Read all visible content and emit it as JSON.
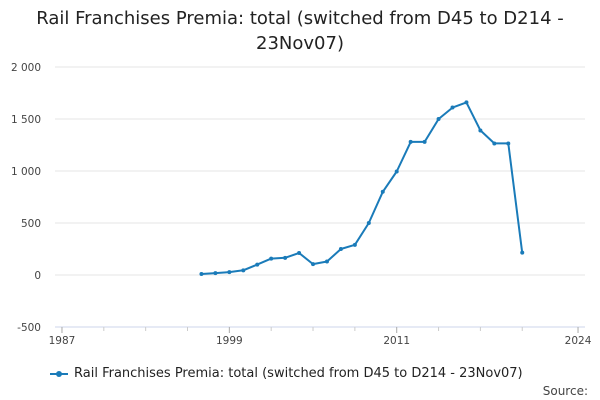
{
  "chart_data": {
    "type": "line",
    "title_lines": [
      "Rail Franchises Premia: total (switched from D45 to D214 -",
      "23Nov07)"
    ],
    "x": [
      1997,
      1998,
      1999,
      2000,
      2001,
      2002,
      2003,
      2004,
      2005,
      2006,
      2007,
      2008,
      2009,
      2010,
      2011,
      2012,
      2013,
      2014,
      2015,
      2016,
      2017,
      2018,
      2019,
      2020
    ],
    "series": [
      {
        "name": "Rail Franchises Premia: total (switched from D45 to D214 - 23Nov07)",
        "color": "#1a7bb9",
        "values": [
          10,
          18,
          28,
          45,
          100,
          158,
          165,
          212,
          105,
          130,
          250,
          290,
          500,
          800,
          995,
          1280,
          1280,
          1500,
          1610,
          1660,
          1390,
          1265,
          1265,
          215
        ]
      }
    ],
    "xlim": [
      1986.5,
      2024.5
    ],
    "ylim": [
      -500,
      2000
    ],
    "y_ticks": [
      -500,
      0,
      500,
      1000,
      1500,
      2000
    ],
    "y_tick_labels": [
      "-500",
      "0",
      "500",
      "1 000",
      "1 500",
      "2 000"
    ],
    "x_ticks": [
      1987,
      1999,
      2011,
      2024
    ],
    "x_tick_labels": [
      "1987",
      "1999",
      "2011",
      "2024"
    ],
    "x_minor_ticks": [
      1990,
      1993,
      1996,
      2002,
      2005,
      2008,
      2014,
      2017,
      2020
    ],
    "grid": true,
    "legend_position": "bottom-left",
    "source_label": "Source:"
  }
}
